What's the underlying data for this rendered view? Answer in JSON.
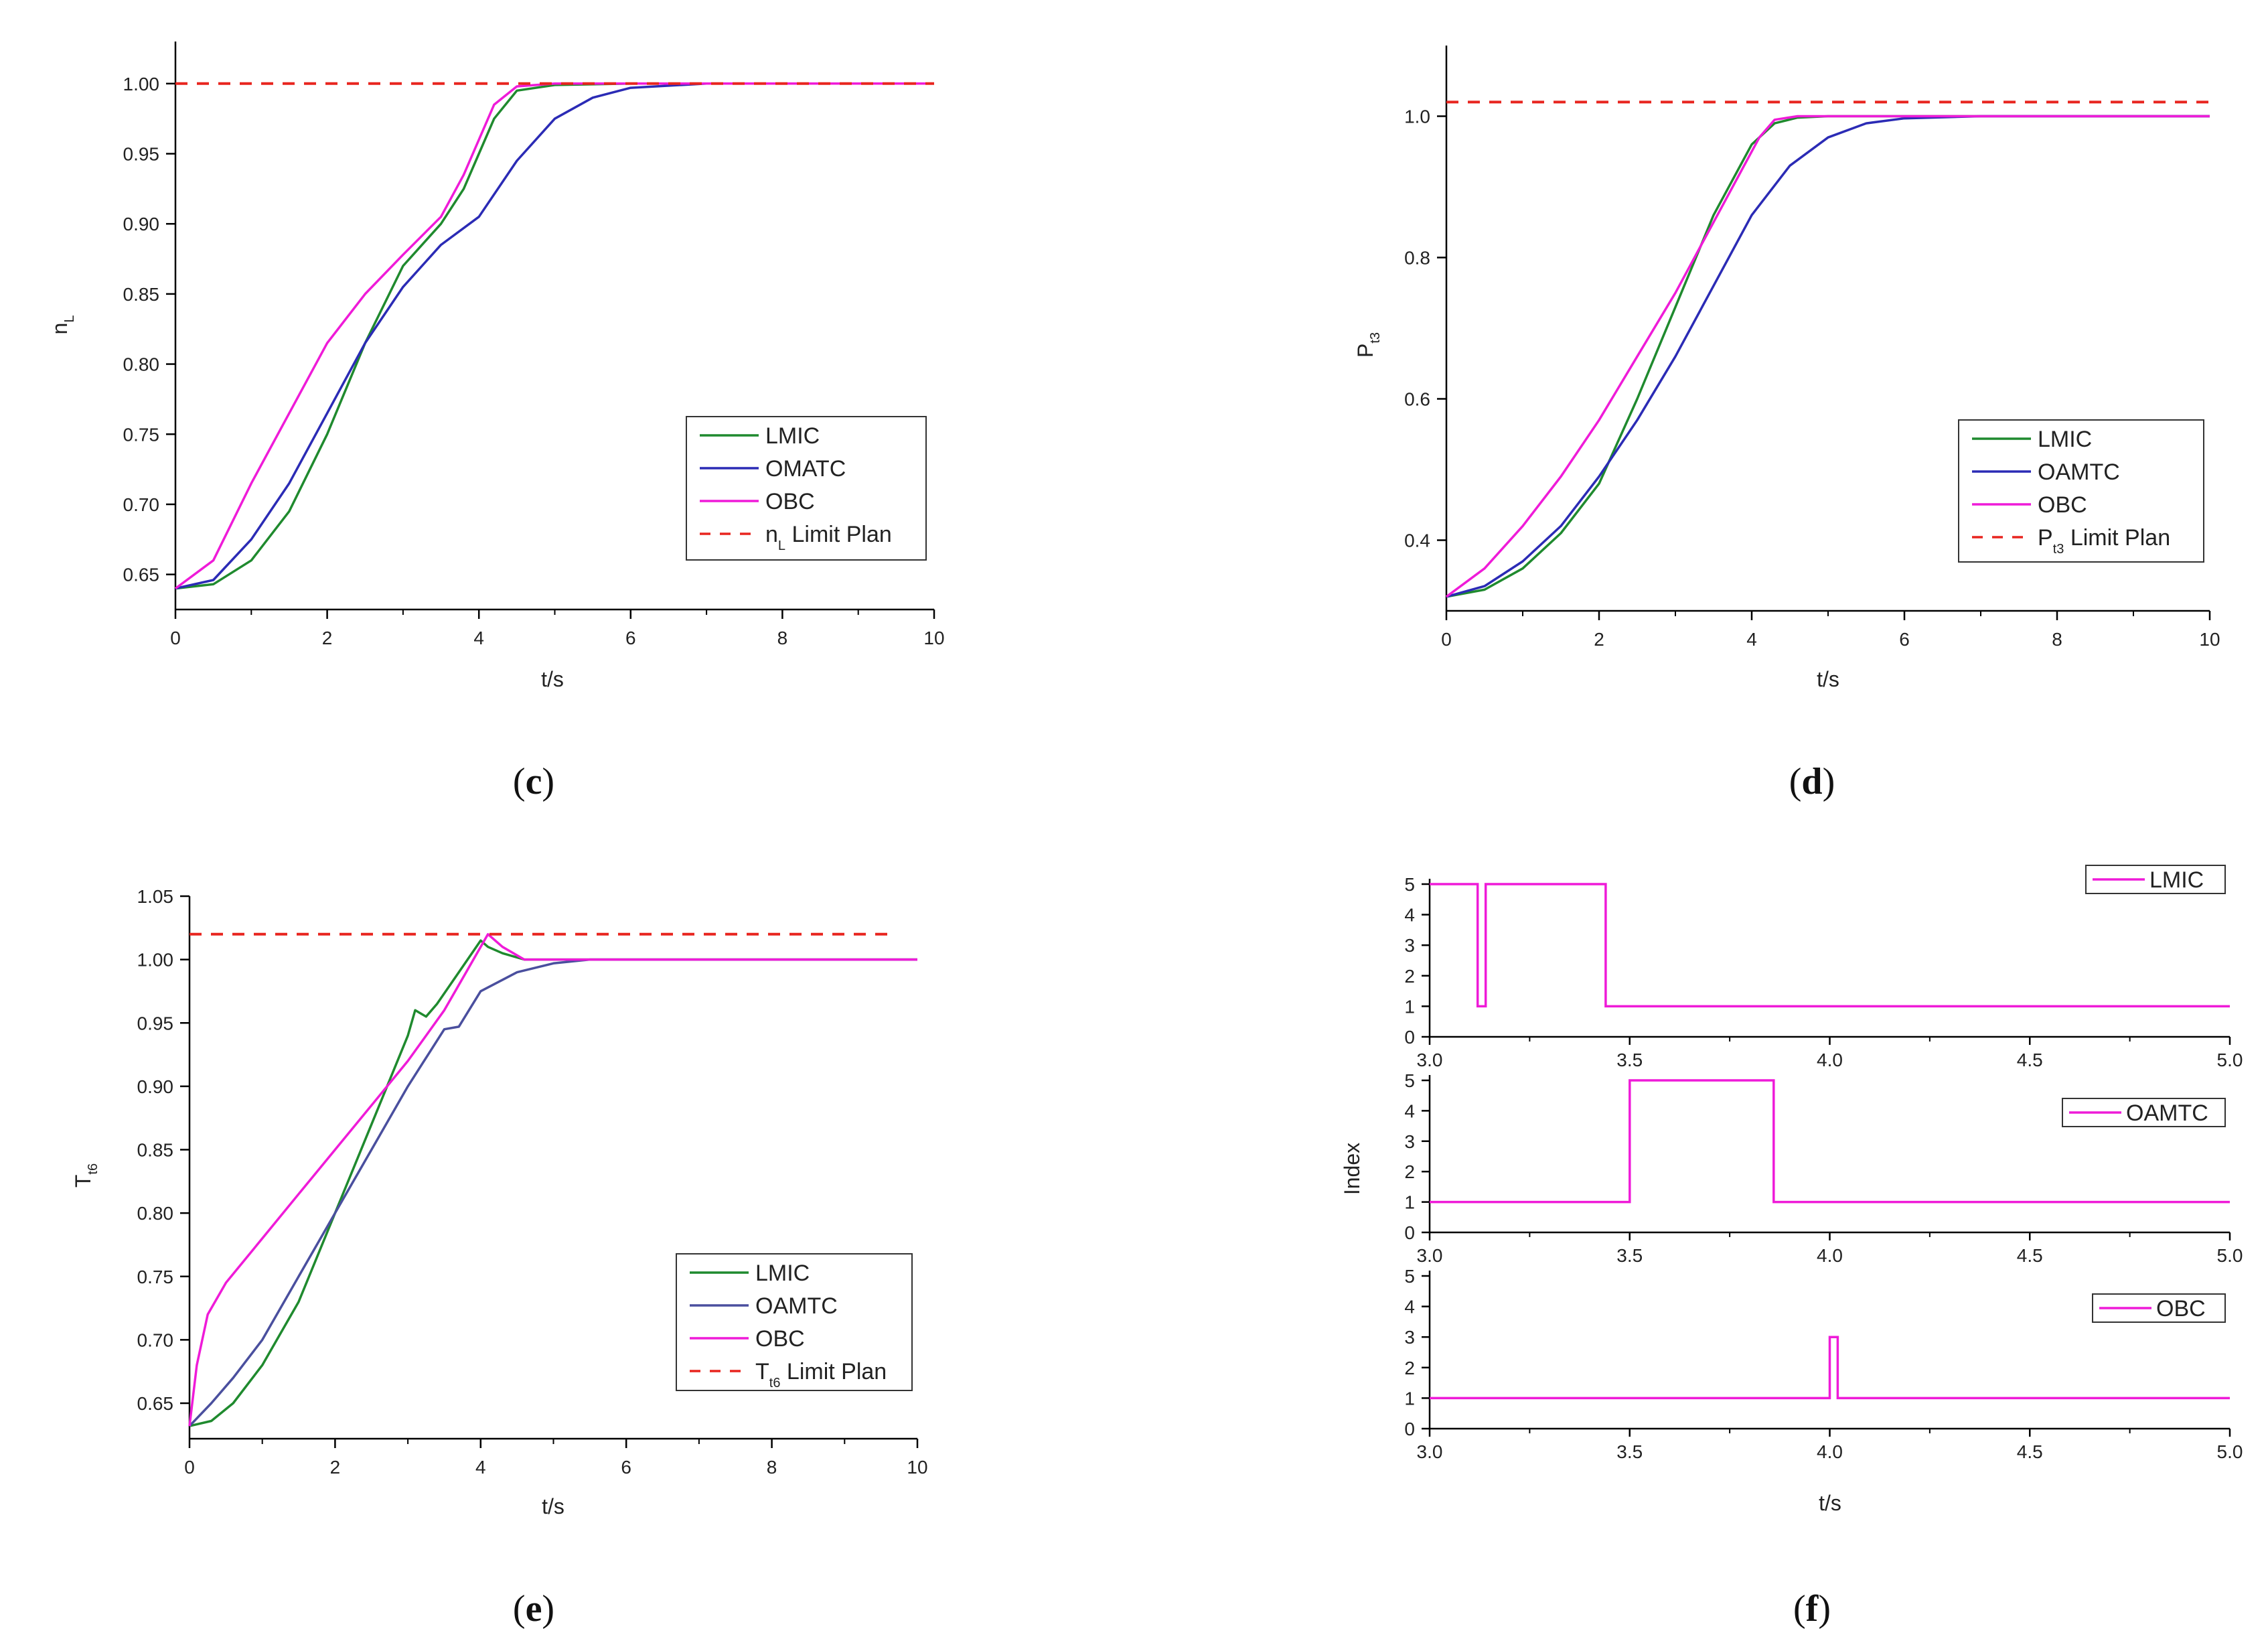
{
  "colors": {
    "green": "#1f8a2e",
    "blue": "#2b2bb5",
    "navy": "#4a4f9e",
    "magenta": "#ef1bd8",
    "red": "#e8251f",
    "axis": "#000000"
  },
  "chart_data": [
    {
      "id": "c",
      "type": "line",
      "caption": "c",
      "xlabel": "t/s",
      "ylabel": {
        "main": "n",
        "sub": "L"
      },
      "xlim": [
        0,
        10
      ],
      "ylim": [
        0.625,
        1.03
      ],
      "xticks": [
        "0",
        "2",
        "4",
        "6",
        "8",
        "10"
      ],
      "yticks": [
        "0.65",
        "0.70",
        "0.75",
        "0.80",
        "0.85",
        "0.90",
        "0.95",
        "1.00"
      ],
      "legend": [
        {
          "label": "LMIC",
          "sub": "",
          "after": "",
          "style": "solid",
          "color": "#1f8a2e"
        },
        {
          "label": "OMATC",
          "sub": "",
          "after": "",
          "style": "solid",
          "color": "#2b2bb5"
        },
        {
          "label": "OBC",
          "sub": "",
          "after": "",
          "style": "solid",
          "color": "#ef1bd8"
        },
        {
          "label": "n",
          "sub": "L",
          "after": " Limit Plan",
          "style": "dashed",
          "color": "#e8251f"
        }
      ],
      "series": [
        {
          "name": "LMIC",
          "color": "#1f8a2e",
          "x": [
            0,
            0.5,
            1,
            1.5,
            2,
            2.5,
            3,
            3.5,
            3.8,
            4,
            4.2,
            4.5,
            5,
            6,
            8,
            10
          ],
          "y": [
            0.64,
            0.643,
            0.66,
            0.695,
            0.75,
            0.815,
            0.87,
            0.9,
            0.925,
            0.95,
            0.975,
            0.995,
            0.999,
            1.0,
            1.0,
            1.0
          ]
        },
        {
          "name": "OMATC",
          "color": "#2b2bb5",
          "x": [
            0,
            0.5,
            1,
            1.5,
            2,
            2.5,
            3,
            3.5,
            4,
            4.5,
            5,
            5.5,
            6,
            7,
            8,
            10
          ],
          "y": [
            0.64,
            0.646,
            0.675,
            0.715,
            0.765,
            0.815,
            0.855,
            0.885,
            0.905,
            0.945,
            0.975,
            0.99,
            0.997,
            1.0,
            1.0,
            1.0
          ]
        },
        {
          "name": "OBC",
          "color": "#ef1bd8",
          "x": [
            0,
            0.5,
            1,
            1.5,
            2,
            2.5,
            3,
            3.5,
            3.8,
            4,
            4.2,
            4.5,
            5,
            6,
            8,
            10
          ],
          "y": [
            0.64,
            0.66,
            0.715,
            0.765,
            0.815,
            0.85,
            0.878,
            0.905,
            0.935,
            0.96,
            0.985,
            0.998,
            1.0,
            1.0,
            1.0,
            1.0
          ]
        },
        {
          "name": "n_L Limit Plan",
          "color": "#e8251f",
          "dashed": true,
          "x": [
            0,
            10
          ],
          "y": [
            1.0,
            1.0
          ]
        }
      ]
    },
    {
      "id": "d",
      "type": "line",
      "caption": "d",
      "xlabel": "t/s",
      "ylabel": {
        "main": "P",
        "sub": "t3"
      },
      "xlim": [
        0,
        10
      ],
      "ylim": [
        0.3,
        1.1
      ],
      "xticks": [
        "0",
        "2",
        "4",
        "6",
        "8",
        "10"
      ],
      "yticks": [
        "0.4",
        "0.6",
        "0.8",
        "1.0"
      ],
      "legend": [
        {
          "label": "LMIC",
          "sub": "",
          "after": "",
          "style": "solid",
          "color": "#1f8a2e"
        },
        {
          "label": "OAMTC",
          "sub": "",
          "after": "",
          "style": "solid",
          "color": "#2b2bb5"
        },
        {
          "label": "OBC",
          "sub": "",
          "after": "",
          "style": "solid",
          "color": "#ef1bd8"
        },
        {
          "label": "P",
          "sub": "t3",
          "after": " Limit Plan",
          "style": "dashed",
          "color": "#e8251f"
        }
      ],
      "series": [
        {
          "name": "LMIC",
          "color": "#1f8a2e",
          "x": [
            0,
            0.5,
            1,
            1.5,
            2,
            2.5,
            3,
            3.5,
            4,
            4.3,
            4.6,
            5,
            6,
            8,
            10
          ],
          "y": [
            0.32,
            0.33,
            0.36,
            0.41,
            0.48,
            0.6,
            0.73,
            0.86,
            0.96,
            0.99,
            0.998,
            1.0,
            1.0,
            1.0,
            1.0
          ]
        },
        {
          "name": "OAMTC",
          "color": "#2b2bb5",
          "x": [
            0,
            0.5,
            1,
            1.5,
            2,
            2.5,
            3,
            3.5,
            4,
            4.5,
            5,
            5.5,
            6,
            7,
            8,
            10
          ],
          "y": [
            0.32,
            0.335,
            0.37,
            0.42,
            0.49,
            0.57,
            0.66,
            0.76,
            0.86,
            0.93,
            0.97,
            0.99,
            0.997,
            1.0,
            1.0,
            1.0
          ]
        },
        {
          "name": "OBC",
          "color": "#ef1bd8",
          "x": [
            0,
            0.5,
            1,
            1.5,
            2,
            2.5,
            3,
            3.5,
            3.9,
            4.1,
            4.3,
            4.6,
            5,
            6,
            8,
            10
          ],
          "y": [
            0.32,
            0.36,
            0.42,
            0.49,
            0.57,
            0.66,
            0.75,
            0.85,
            0.93,
            0.97,
            0.995,
            1.0,
            1.0,
            1.0,
            1.0,
            1.0
          ]
        },
        {
          "name": "P_t3 Limit Plan",
          "color": "#e8251f",
          "dashed": true,
          "x": [
            0,
            10
          ],
          "y": [
            1.02,
            1.02
          ]
        }
      ]
    },
    {
      "id": "e",
      "type": "line",
      "caption": "e",
      "xlabel": "t/s",
      "ylabel": {
        "main": "T",
        "sub": "t6"
      },
      "xlim": [
        0,
        10
      ],
      "ylim": [
        0.622,
        1.05
      ],
      "xticks": [
        "0",
        "2",
        "4",
        "6",
        "8",
        "10"
      ],
      "yticks": [
        "0.65",
        "0.70",
        "0.75",
        "0.80",
        "0.85",
        "0.90",
        "0.95",
        "1.00",
        "1.05"
      ],
      "legend": [
        {
          "label": "LMIC",
          "sub": "",
          "after": "",
          "style": "solid",
          "color": "#1f8a2e"
        },
        {
          "label": "OAMTC",
          "sub": "",
          "after": "",
          "style": "solid",
          "color": "#4a4f9e"
        },
        {
          "label": "OBC",
          "sub": "",
          "after": "",
          "style": "solid",
          "color": "#ef1bd8"
        },
        {
          "label": "T",
          "sub": "t6",
          "after": " Limit Plan",
          "style": "dashed",
          "color": "#e8251f"
        }
      ],
      "series": [
        {
          "name": "LMIC",
          "color": "#1f8a2e",
          "x": [
            0,
            0.3,
            0.6,
            1,
            1.5,
            2,
            2.5,
            3,
            3.1,
            3.25,
            3.4,
            3.7,
            4,
            4.1,
            4.3,
            4.6,
            5,
            6,
            10
          ],
          "y": [
            0.632,
            0.636,
            0.65,
            0.68,
            0.73,
            0.8,
            0.87,
            0.94,
            0.96,
            0.955,
            0.965,
            0.99,
            1.015,
            1.01,
            1.005,
            1.0,
            1.0,
            1.0,
            1.0
          ]
        },
        {
          "name": "OAMTC",
          "color": "#4a4f9e",
          "x": [
            0,
            0.3,
            0.6,
            1,
            1.5,
            2,
            2.5,
            3,
            3.5,
            3.7,
            4,
            4.5,
            5,
            5.5,
            6,
            10
          ],
          "y": [
            0.632,
            0.65,
            0.67,
            0.7,
            0.75,
            0.8,
            0.85,
            0.9,
            0.945,
            0.947,
            0.975,
            0.99,
            0.997,
            1.0,
            1.0,
            1.0
          ]
        },
        {
          "name": "OBC",
          "color": "#ef1bd8",
          "x": [
            0,
            0.1,
            0.25,
            0.5,
            1,
            1.5,
            2,
            2.5,
            3,
            3.5,
            3.8,
            4,
            4.1,
            4.3,
            4.6,
            5,
            6,
            10
          ],
          "y": [
            0.632,
            0.68,
            0.72,
            0.745,
            0.78,
            0.815,
            0.85,
            0.885,
            0.92,
            0.96,
            0.99,
            1.01,
            1.02,
            1.01,
            1.0,
            1.0,
            1.0,
            1.0
          ]
        },
        {
          "name": "T_t6 Limit Plan",
          "color": "#e8251f",
          "dashed": true,
          "x": [
            0,
            9.7
          ],
          "y": [
            1.02,
            1.02
          ]
        }
      ]
    },
    {
      "id": "f",
      "type": "line",
      "caption": "f",
      "xlabel": "t/s",
      "ylabel": "Index",
      "panels": [
        {
          "legend": "LMIC",
          "xlim": [
            3.0,
            5.0
          ],
          "ylim": [
            0,
            5
          ],
          "xticks": [
            "3.0",
            "3.5",
            "4.0",
            "4.5",
            "5.0"
          ],
          "yticks": [
            "0",
            "1",
            "2",
            "3",
            "4",
            "5"
          ],
          "x": [
            3.0,
            3.12,
            3.12,
            3.14,
            3.14,
            3.44,
            3.44,
            5.0
          ],
          "y": [
            5,
            5,
            1,
            1,
            5,
            5,
            1,
            1
          ]
        },
        {
          "legend": "OAMTC",
          "xlim": [
            3.0,
            5.0
          ],
          "ylim": [
            0,
            5
          ],
          "xticks": [
            "3.0",
            "3.5",
            "4.0",
            "4.5",
            "5.0"
          ],
          "yticks": [
            "0",
            "1",
            "2",
            "3",
            "4",
            "5"
          ],
          "x": [
            3.0,
            3.5,
            3.5,
            3.86,
            3.86,
            5.0
          ],
          "y": [
            1,
            1,
            5,
            5,
            1,
            1
          ]
        },
        {
          "legend": "OBC",
          "xlim": [
            3.0,
            5.0
          ],
          "ylim": [
            0,
            5
          ],
          "xticks": [
            "3.0",
            "3.5",
            "4.0",
            "4.5",
            "5.0"
          ],
          "yticks": [
            "0",
            "1",
            "2",
            "3",
            "4",
            "5"
          ],
          "x": [
            3.0,
            4.0,
            4.0,
            4.02,
            4.02,
            5.0
          ],
          "y": [
            1,
            1,
            3,
            3,
            1,
            1
          ]
        }
      ],
      "color": "#ef1bd8"
    }
  ]
}
